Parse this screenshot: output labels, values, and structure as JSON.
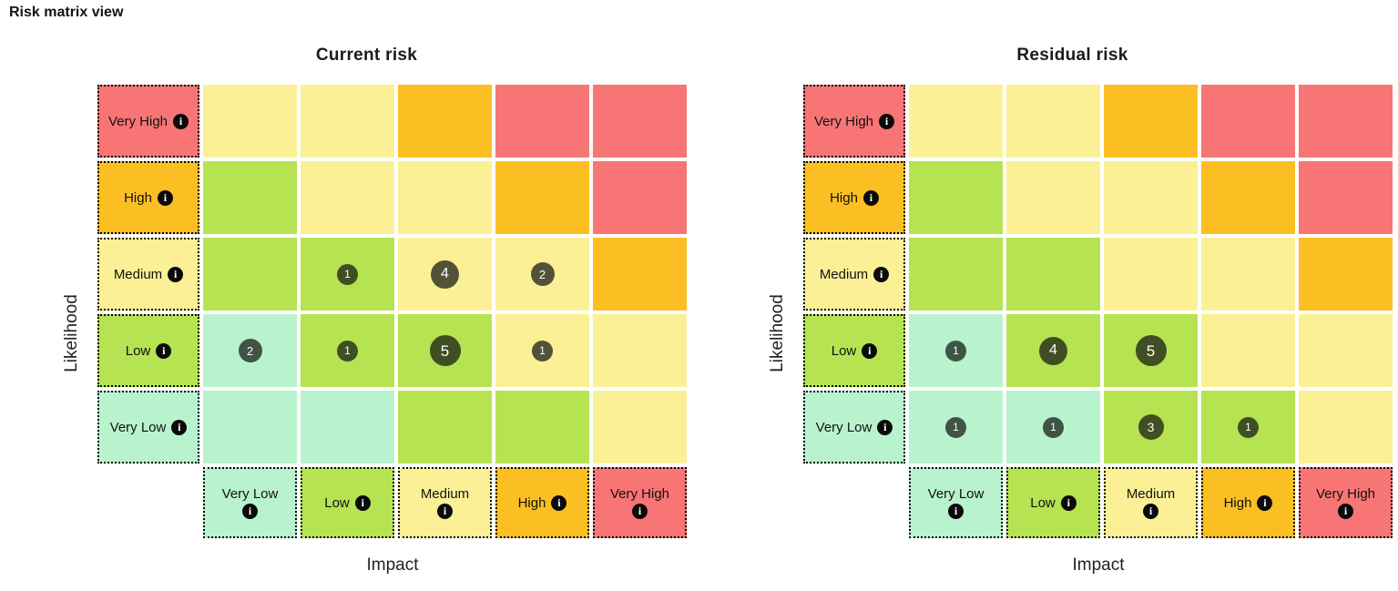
{
  "page": {
    "title": "Risk matrix view"
  },
  "colors": {
    "Very Low": "#b9f3ce",
    "Low": "#b6e352",
    "Medium": "#fbf096",
    "High": "#fbbf24",
    "Very High": "#f87575",
    "badge": "rgba(17,22,16,0.72)",
    "badge_text": "#ffffff"
  },
  "info_icon_glyph": "i",
  "chart_data": [
    {
      "type": "heatmap",
      "title": "Current risk",
      "xlabel": "Impact",
      "ylabel": "Likelihood",
      "x_categories": [
        "Very Low",
        "Low",
        "Medium",
        "High",
        "Very High"
      ],
      "y_categories": [
        "Very High",
        "High",
        "Medium",
        "Low",
        "Very Low"
      ],
      "cell_risk_levels": [
        [
          "Medium",
          "Medium",
          "High",
          "Very High",
          "Very High"
        ],
        [
          "Low",
          "Medium",
          "Medium",
          "High",
          "Very High"
        ],
        [
          "Low",
          "Low",
          "Medium",
          "Medium",
          "High"
        ],
        [
          "Very Low",
          "Low",
          "Low",
          "Medium",
          "Medium"
        ],
        [
          "Very Low",
          "Very Low",
          "Low",
          "Low",
          "Medium"
        ]
      ],
      "counts": [
        [
          null,
          null,
          null,
          null,
          null
        ],
        [
          null,
          null,
          null,
          null,
          null
        ],
        [
          null,
          1,
          4,
          2,
          null
        ],
        [
          2,
          1,
          5,
          1,
          null
        ],
        [
          null,
          null,
          null,
          null,
          null
        ]
      ]
    },
    {
      "type": "heatmap",
      "title": "Residual risk",
      "xlabel": "Impact",
      "ylabel": "Likelihood",
      "x_categories": [
        "Very Low",
        "Low",
        "Medium",
        "High",
        "Very High"
      ],
      "y_categories": [
        "Very High",
        "High",
        "Medium",
        "Low",
        "Very Low"
      ],
      "cell_risk_levels": [
        [
          "Medium",
          "Medium",
          "High",
          "Very High",
          "Very High"
        ],
        [
          "Low",
          "Medium",
          "Medium",
          "High",
          "Very High"
        ],
        [
          "Low",
          "Low",
          "Medium",
          "Medium",
          "High"
        ],
        [
          "Very Low",
          "Low",
          "Low",
          "Medium",
          "Medium"
        ],
        [
          "Very Low",
          "Very Low",
          "Low",
          "Low",
          "Medium"
        ]
      ],
      "counts": [
        [
          null,
          null,
          null,
          null,
          null
        ],
        [
          null,
          null,
          null,
          null,
          null
        ],
        [
          null,
          null,
          null,
          null,
          null
        ],
        [
          1,
          4,
          5,
          null,
          null
        ],
        [
          1,
          1,
          3,
          1,
          null
        ]
      ]
    }
  ]
}
